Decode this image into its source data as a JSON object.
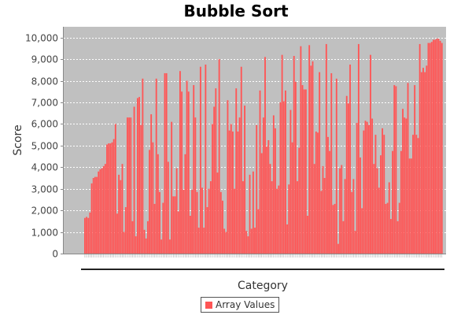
{
  "chart_data": {
    "type": "bar",
    "title": "Bubble Sort",
    "xlabel": "Category",
    "ylabel": "Score",
    "ylim": [
      0,
      10500
    ],
    "yticks": [
      0,
      1000,
      2000,
      3000,
      4000,
      5000,
      6000,
      7000,
      8000,
      9000,
      10000
    ],
    "ytick_labels": [
      "0",
      "1,000",
      "2,000",
      "3,000",
      "4,000",
      "5,000",
      "6,000",
      "7,000",
      "8,000",
      "9,000",
      "10,000"
    ],
    "grid": true,
    "legend_position": "bottom-center",
    "series": [
      {
        "name": "Array Values",
        "color": "#ff5555",
        "values": [
          1650,
          1700,
          1650,
          1900,
          3250,
          3500,
          3550,
          3550,
          3800,
          3900,
          3950,
          4050,
          4150,
          5050,
          5100,
          5100,
          5150,
          5300,
          6000,
          1850,
          3650,
          3400,
          4150,
          1000,
          2150,
          6300,
          6300,
          6300,
          1500,
          6800,
          800,
          7200,
          7250,
          5950,
          8100,
          1100,
          700,
          1500,
          4800,
          6450,
          5150,
          2300,
          8100,
          4600,
          2850,
          650,
          2350,
          8350,
          8350,
          4250,
          650,
          6100,
          2650,
          2650,
          3950,
          1950,
          8450,
          7500,
          2950,
          4600,
          8000,
          7500,
          1750,
          2950,
          7800,
          6300,
          2850,
          1200,
          8650,
          3050,
          1200,
          8750,
          2150,
          3000,
          3350,
          6000,
          6800,
          7650,
          3750,
          9000,
          2850,
          2450,
          1150,
          1000,
          7100,
          5700,
          6000,
          5650,
          3000,
          7650,
          5650,
          6300,
          8650,
          3350,
          6850,
          1050,
          800,
          3650,
          1150,
          3800,
          1200,
          5950,
          2050,
          7550,
          4650,
          6300,
          9100,
          4950,
          5250,
          4150,
          3350,
          6400,
          5800,
          3000,
          3150,
          7000,
          9200,
          7050,
          7550,
          1350,
          3200,
          6650,
          5150,
          9150,
          7950,
          3350,
          4900,
          9600,
          7800,
          7600,
          7600,
          1750,
          9650,
          8700,
          8900,
          4150,
          5650,
          5600,
          8400,
          2900,
          4050,
          3500,
          9700,
          5400,
          4750,
          8350,
          2250,
          2300,
          8100,
          450,
          3950,
          4100,
          1500,
          3450,
          7300,
          6950,
          8750,
          2850,
          3450,
          1050,
          6050,
          9700,
          4450,
          2100,
          5700,
          6150,
          6100,
          5950,
          9200,
          6250,
          4150,
          5500,
          3950,
          3050,
          4550,
          5800,
          5500,
          2300,
          2350,
          3300,
          1600,
          4750,
          7800,
          7750,
          1500,
          2350,
          4750,
          6700,
          6300,
          6250,
          7900,
          4400,
          4400,
          5500,
          7800,
          5500,
          5350,
          9700,
          8400,
          8600,
          8400,
          8700,
          9750,
          9750,
          9800,
          9900,
          9900,
          9950,
          9950,
          9850,
          9750
        ]
      }
    ]
  }
}
